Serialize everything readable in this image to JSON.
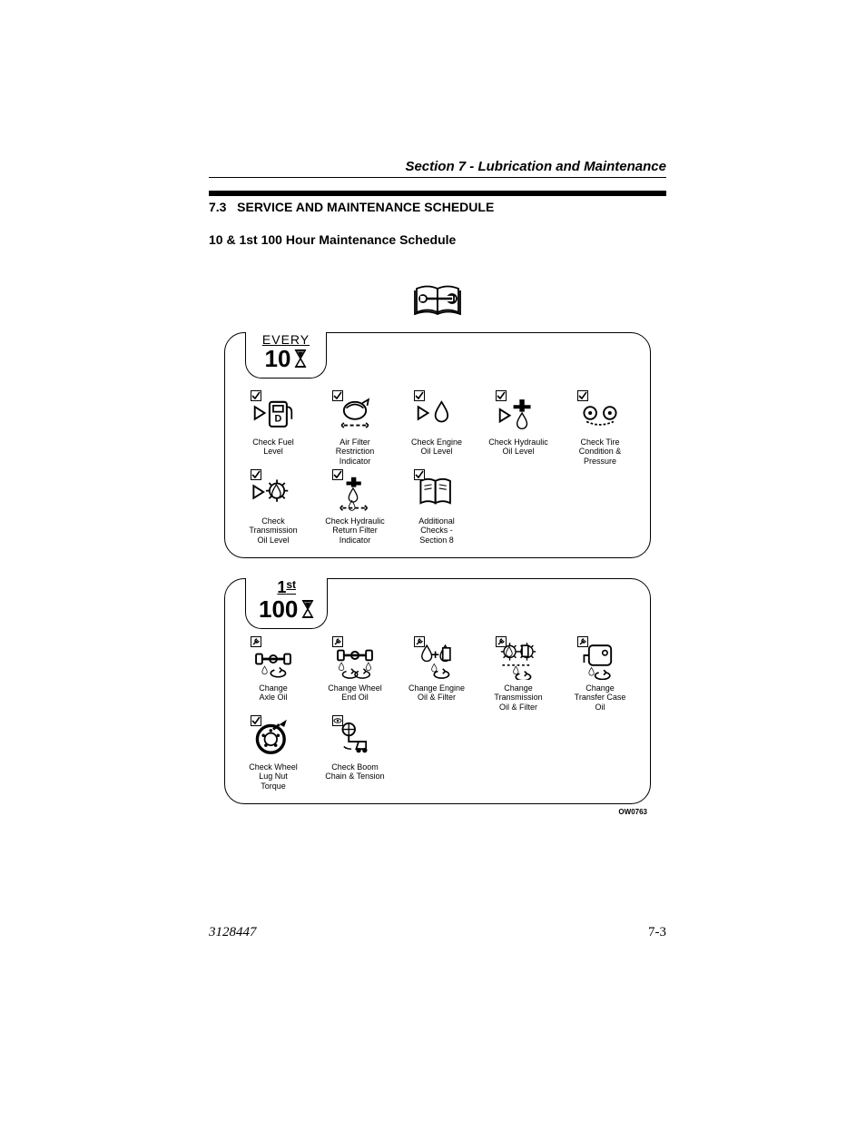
{
  "header": {
    "section_title": "Section 7 - Lubrication and Maintenance"
  },
  "heading": {
    "number": "7.3",
    "title": "SERVICE AND MAINTENANCE SCHEDULE"
  },
  "sub_heading": "10 & 1st 100 Hour Maintenance Schedule",
  "group1": {
    "tab_top": "EVERY",
    "tab_num": "10",
    "items": [
      {
        "label": "Check Fuel\nLevel",
        "corner": "check",
        "icon": "fuel"
      },
      {
        "label": "Air Filter\nRestriction\nIndicator",
        "corner": "check",
        "icon": "airfilter"
      },
      {
        "label": "Check Engine\nOil Level",
        "corner": "check",
        "icon": "engoil"
      },
      {
        "label": "Check Hydraulic\nOil Level",
        "corner": "check",
        "icon": "hydoil"
      },
      {
        "label": "Check Tire\nCondition &\nPressure",
        "corner": "check",
        "icon": "tire"
      },
      {
        "label": "Check\nTransmission\nOil Level",
        "corner": "check",
        "icon": "transoil"
      },
      {
        "label": "Check Hydraulic\nReturn Filter\nIndicator",
        "corner": "check",
        "icon": "hydret"
      },
      {
        "label": "Additional\nChecks -\nSection 8",
        "corner": "check",
        "icon": "book"
      }
    ]
  },
  "group2": {
    "tab_top_num": "1",
    "tab_top_suffix": "st",
    "tab_num": "100",
    "items": [
      {
        "label": "Change\nAxle Oil",
        "corner": "wrench",
        "icon": "axle"
      },
      {
        "label": "Change Wheel\nEnd Oil",
        "corner": "wrench",
        "icon": "wheelend"
      },
      {
        "label": "Change Engine\nOil & Filter",
        "corner": "wrench",
        "icon": "engchange"
      },
      {
        "label": "Change\nTransmission\nOil & Filter",
        "corner": "wrench",
        "icon": "transchange"
      },
      {
        "label": "Change\nTransfer Case\nOil",
        "corner": "wrench",
        "icon": "transfer"
      },
      {
        "label": "Check Wheel\nLug Nut\nTorque",
        "corner": "check",
        "icon": "lugnut"
      },
      {
        "label": "Check Boom\nChain & Tension",
        "corner": "eye",
        "icon": "boom"
      }
    ]
  },
  "figure_ref": "OW0763",
  "footer": {
    "doc_num": "3128447",
    "page_num": "7-3"
  },
  "colors": {
    "text": "#000000",
    "bg": "#ffffff",
    "stroke": "#000000"
  }
}
